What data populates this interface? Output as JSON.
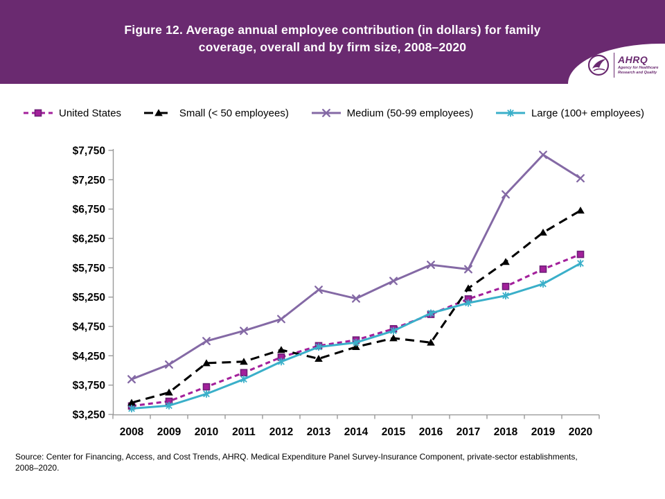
{
  "header": {
    "title": "Figure 12. Average annual employee contribution (in dollars) for family\ncoverage, overall and by firm size, 2008–2020",
    "logo": {
      "wordmark": "AHRQ",
      "tagline": "Agency for Healthcare\nResearch and Quality"
    }
  },
  "footer": {
    "source": "Source: Center for Financing, Access, and Cost Trends, AHRQ. Medical Expenditure Panel Survey-Insurance Component, private-sector establishments,\n2008–2020."
  },
  "colors": {
    "header_bg": "#6A2A70",
    "brand_purple": "#6A2A70",
    "axis": "#9a9a9a",
    "tick_label": "#000000",
    "us_line": "#A3209B",
    "us_marker_stroke": "#6E1E78",
    "small_line": "#000000",
    "medium_line": "#8469A5",
    "large_line": "#3AAFC9"
  },
  "chart_data": {
    "type": "line",
    "title": "Average annual employee contribution (in dollars) for family coverage, overall and by firm size, 2008–2020",
    "categories": [
      "2008",
      "2009",
      "2010",
      "2011",
      "2012",
      "2013",
      "2014",
      "2015",
      "2016",
      "2017",
      "2018",
      "2019",
      "2020"
    ],
    "series": [
      {
        "name": "United States",
        "color": "#A3209B",
        "marker_stroke": "#6E1E78",
        "line": "dashed-short",
        "marker": "square",
        "values": [
          3394,
          3474,
          3721,
          3962,
          4226,
          4421,
          4518,
          4710,
          4956,
          5218,
          5431,
          5726,
          5978
        ]
      },
      {
        "name": "Small (< 50 employees)",
        "color": "#000000",
        "line": "dashed-long",
        "marker": "triangle",
        "values": [
          3450,
          3625,
          4125,
          4150,
          4350,
          4200,
          4400,
          4550,
          4475,
          5400,
          5850,
          6350,
          6725
        ]
      },
      {
        "name": "Medium (50-99 employees)",
        "color": "#8469A5",
        "line": "solid",
        "marker": "x",
        "values": [
          3850,
          4100,
          4500,
          4675,
          4875,
          5375,
          5225,
          5525,
          5800,
          5725,
          7000,
          7675,
          7275
        ]
      },
      {
        "name": "Large (100+ employees)",
        "color": "#3AAFC9",
        "line": "solid",
        "marker": "asterisk",
        "values": [
          3350,
          3400,
          3600,
          3850,
          4150,
          4400,
          4475,
          4675,
          4975,
          5150,
          5275,
          5475,
          5825
        ]
      }
    ],
    "y_axis": {
      "min": 3250,
      "max": 7750,
      "tick_step": 500,
      "tick_labels": [
        "$3,250",
        "$3,750",
        "$4,250",
        "$4,750",
        "$5,250",
        "$5,750",
        "$6,250",
        "$6,750",
        "$7,250",
        "$7,750"
      ]
    },
    "x_axis": {
      "tick_labels": [
        "2008",
        "2009",
        "2010",
        "2011",
        "2012",
        "2013",
        "2014",
        "2015",
        "2016",
        "2017",
        "2018",
        "2019",
        "2020"
      ]
    },
    "legend_position": "top",
    "grid": false
  }
}
